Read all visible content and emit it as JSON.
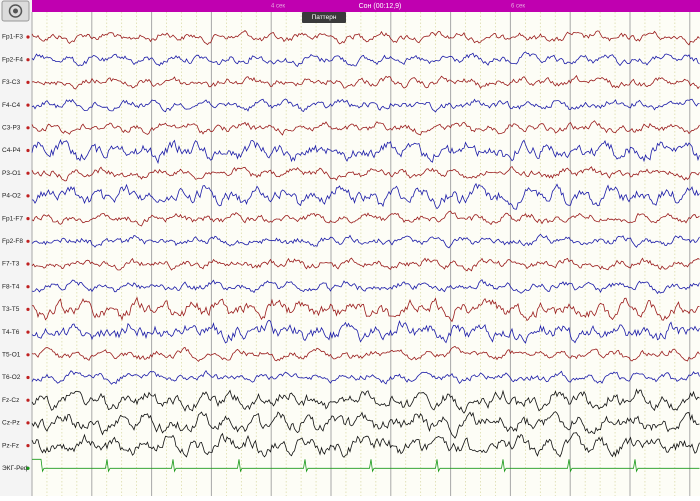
{
  "title": "Сон (00:12,9)",
  "time_marks": [
    "4 сек",
    "6 сек"
  ],
  "tooltip": "Паттерн",
  "channels": [
    "Fp1-F3",
    "Fp2-F4",
    "F3-C3",
    "F4-C4",
    "C3-P3",
    "C4-P4",
    "P3-O1",
    "P4-O2",
    "Fp1-F7",
    "Fp2-F8",
    "F7-T3",
    "F8-T4",
    "T3-T5",
    "T4-T6",
    "T5-O1",
    "T6-O2",
    "Fz-Cz",
    "Cz-Pz",
    "Pz-Fz",
    "ЭКГ-Реф"
  ]
}
